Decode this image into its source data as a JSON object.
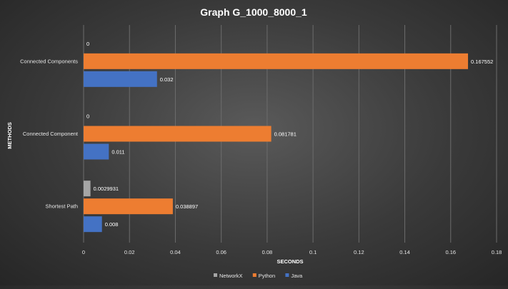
{
  "chart_data": {
    "type": "bar",
    "orientation": "horizontal",
    "title": "Graph G_1000_8000_1",
    "xlabel": "SECONDS",
    "ylabel": "METHODS",
    "categories": [
      "Connected Components",
      "Connected Component",
      "Shortest Path"
    ],
    "series": [
      {
        "name": "NetworkX",
        "color": "#a5a5a5",
        "values": [
          0,
          0,
          0.0029931
        ],
        "labels": [
          "0",
          "0",
          "0.0029931"
        ]
      },
      {
        "name": "Python",
        "color": "#ed7d31",
        "values": [
          0.167552,
          0.081781,
          0.038897
        ],
        "labels": [
          "0.167552",
          "0.081781",
          "0.038897"
        ]
      },
      {
        "name": "Java",
        "color": "#4472c4",
        "values": [
          0.032,
          0.011,
          0.008
        ],
        "labels": [
          "0.032",
          "0.011",
          "0.008"
        ]
      }
    ],
    "xlim": [
      0,
      0.18
    ],
    "xticks": [
      "0",
      "0.02",
      "0.04",
      "0.06",
      "0.08",
      "0.1",
      "0.12",
      "0.14",
      "0.16",
      "0.18"
    ],
    "grid": true,
    "legend_position": "bottom"
  }
}
